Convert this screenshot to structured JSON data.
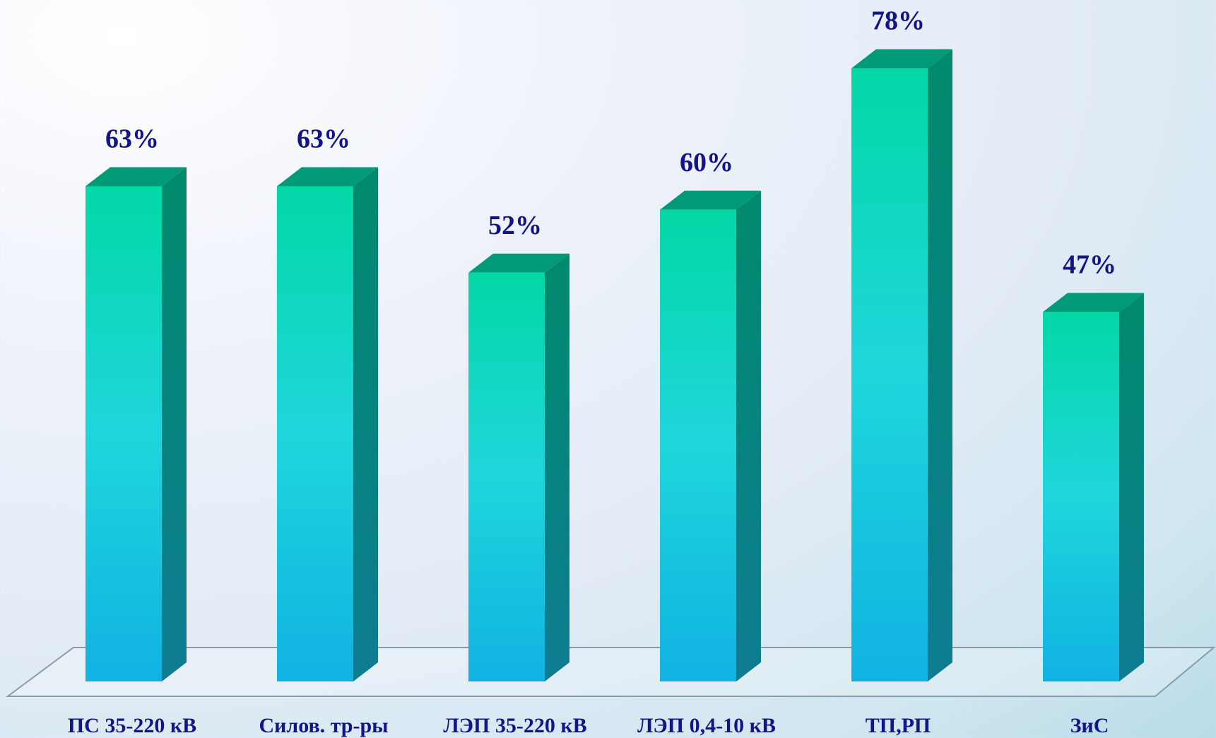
{
  "chart_data": {
    "type": "bar3d",
    "categories": [
      "ПС 35-220 кВ",
      "Силов. тр-ры",
      "ЛЭП 35-220 кВ",
      "ЛЭП 0,4-10  кВ",
      "ТП,РП",
      "ЗиС"
    ],
    "values": [
      63,
      63,
      52,
      60,
      78,
      47
    ],
    "value_labels": [
      "63%",
      "63%",
      "52%",
      "60%",
      "78%",
      "47%"
    ]
  }
}
